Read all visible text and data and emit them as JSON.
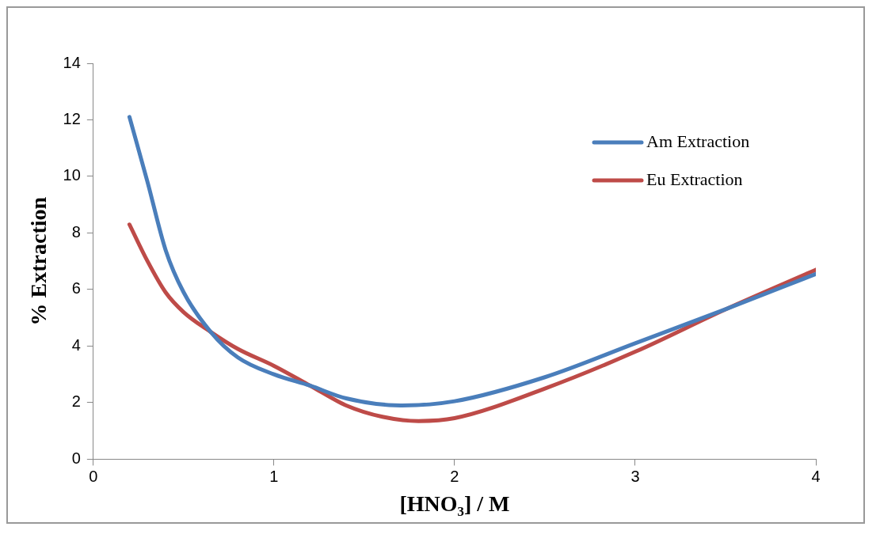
{
  "chart_data": {
    "type": "line",
    "xlabel": "[HNO₃] / M",
    "ylabel": "% Extraction",
    "xlim": [
      0,
      4
    ],
    "xticks": [
      0,
      1,
      2,
      3,
      4
    ],
    "ylim": [
      0,
      14
    ],
    "yticks": [
      0,
      2,
      4,
      6,
      8,
      10,
      12,
      14
    ],
    "grid": false,
    "legend": "top right",
    "marker": "none",
    "line_style": "solid",
    "series": [
      {
        "name": "Am Extraction",
        "color": "#4a7ebb",
        "x": [
          0.2,
          0.3,
          0.4,
          0.5,
          0.65,
          0.8,
          1,
          1.2,
          1.4,
          1.7,
          2,
          2.5,
          3,
          3.5,
          4
        ],
        "values": [
          12.1,
          9.8,
          7.4,
          5.9,
          4.5,
          3.6,
          3.0,
          2.6,
          2.15,
          1.9,
          2.05,
          2.9,
          4.1,
          5.3,
          6.55
        ]
      },
      {
        "name": "Eu Extraction",
        "color": "#be4b48",
        "x": [
          0.2,
          0.3,
          0.4,
          0.5,
          0.65,
          0.8,
          1,
          1.2,
          1.4,
          1.6,
          1.8,
          2,
          2.5,
          3,
          3.5,
          4
        ],
        "values": [
          8.3,
          7.0,
          5.9,
          5.2,
          4.5,
          3.9,
          3.3,
          2.6,
          1.9,
          1.5,
          1.35,
          1.45,
          2.5,
          3.8,
          5.3,
          6.7
        ]
      }
    ]
  }
}
